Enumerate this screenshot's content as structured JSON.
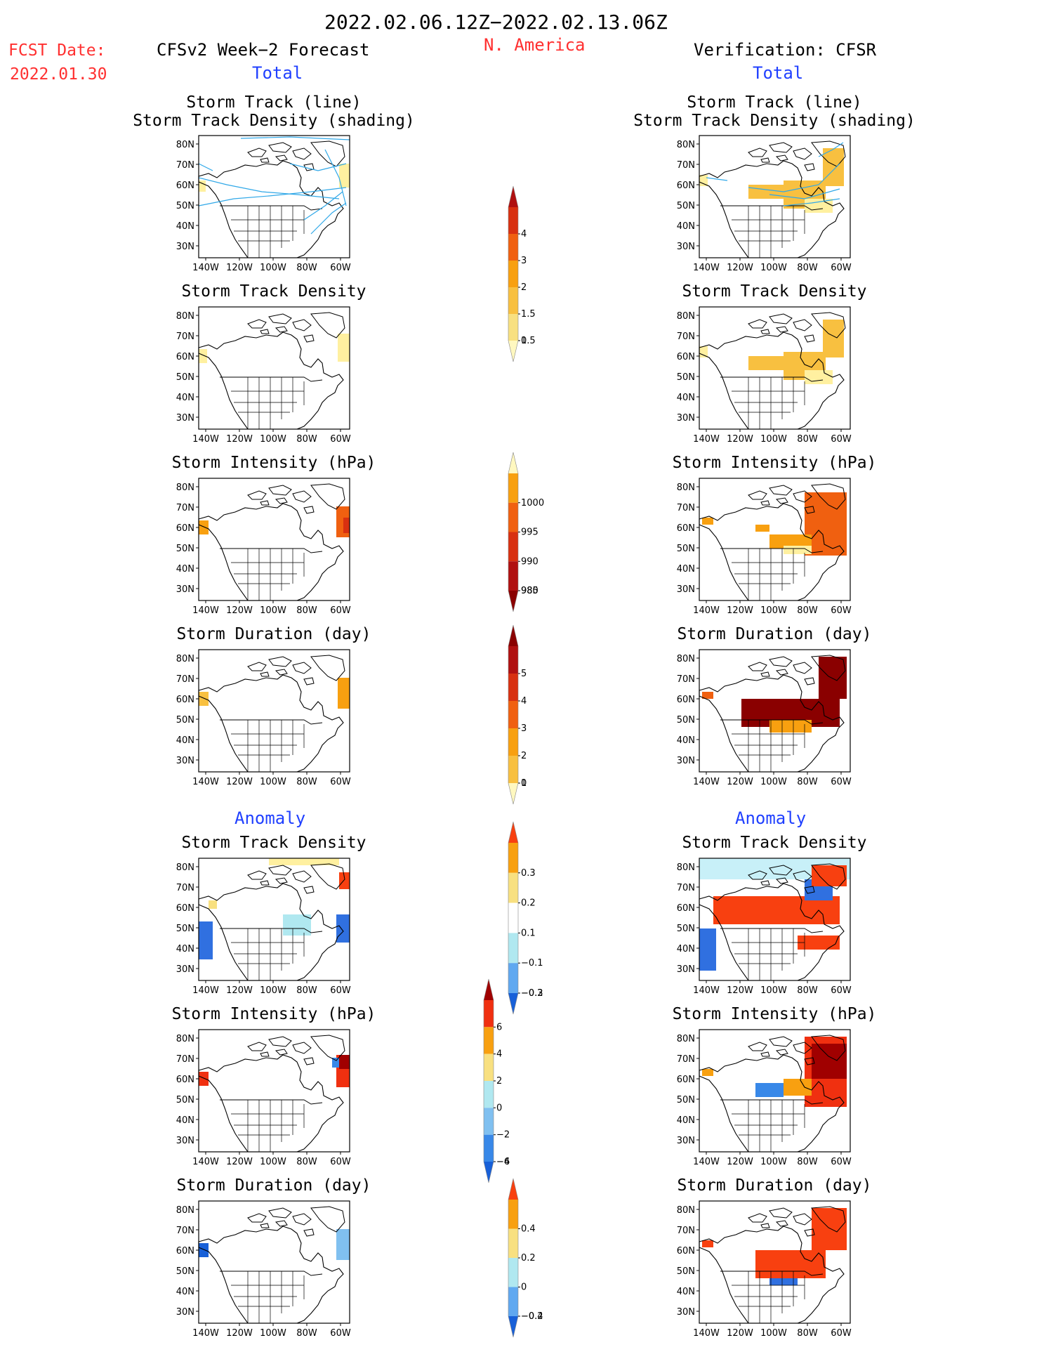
{
  "header": {
    "period": "2022.02.06.12Z−2022.02.13.06Z",
    "fcst_label": "FCST Date:",
    "fcst_date": "2022.01.30",
    "model_title": "CFSv2 Week−2 Forecast",
    "region": "N. America",
    "verification_title": "Verification: CFSR",
    "total_left": "Total",
    "total_right": "Total",
    "anomaly_left": "Anomaly",
    "anomaly_right": "Anomaly"
  },
  "panels": {
    "total_track": {
      "line1": "Storm Track (line)",
      "line2": "Storm Track Density (shading)"
    },
    "total_density": "Storm Track Density",
    "total_intensity": "Storm Intensity (hPa)",
    "total_duration": "Storm Duration (day)",
    "anom_density": "Storm Track Density",
    "anom_intensity": "Storm Intensity (hPa)",
    "anom_duration": "Storm Duration (day)"
  },
  "axes": {
    "lat_labels": [
      "80N",
      "70N",
      "60N",
      "50N",
      "40N",
      "30N"
    ],
    "lon_labels": [
      "140W",
      "120W",
      "100W",
      "80W",
      "60W"
    ]
  },
  "colorbars": {
    "total_density": {
      "labels": [
        "4",
        "3",
        "2",
        "1.5",
        "1",
        "0.5"
      ],
      "colors": [
        "#b01010",
        "#d83010",
        "#f06010",
        "#f8a010",
        "#f8c040",
        "#f8e080",
        "#fff8c0"
      ]
    },
    "total_intensity": {
      "labels": [
        "1000",
        "995",
        "990",
        "985",
        "980"
      ],
      "colors": [
        "#fff8c0",
        "#f8a010",
        "#f06010",
        "#d83010",
        "#b01010",
        "#8a0000"
      ]
    },
    "total_duration": {
      "labels": [
        "5",
        "4",
        "3",
        "2",
        "1",
        "0"
      ],
      "colors": [
        "#8a0000",
        "#b01010",
        "#d83010",
        "#f06010",
        "#f8a010",
        "#f8c040",
        "#fff8c0"
      ]
    },
    "anom_density": {
      "labels": [
        "0.3",
        "0.2",
        "0.1",
        "−0.1",
        "−0.2",
        "−0.3"
      ],
      "colors": [
        "#f84010",
        "#f8a010",
        "#f8e080",
        "#ffffff",
        "#b0e8f0",
        "#60a8f0",
        "#1860d8"
      ]
    },
    "anom_intensity": {
      "labels": [
        "6",
        "4",
        "2",
        "0",
        "−2",
        "−4",
        "−6"
      ],
      "colors": [
        "#a00000",
        "#f03010",
        "#f8a010",
        "#f8e080",
        "#b0e8f0",
        "#80c0f0",
        "#3888e8",
        "#1860d8"
      ]
    },
    "anom_duration": {
      "labels": [
        "0.4",
        "0.2",
        "0",
        "−0.2",
        "−0.4"
      ],
      "colors": [
        "#f84010",
        "#f8a010",
        "#f8e080",
        "#b0e8f0",
        "#60a8f0",
        "#1860d8"
      ]
    }
  }
}
